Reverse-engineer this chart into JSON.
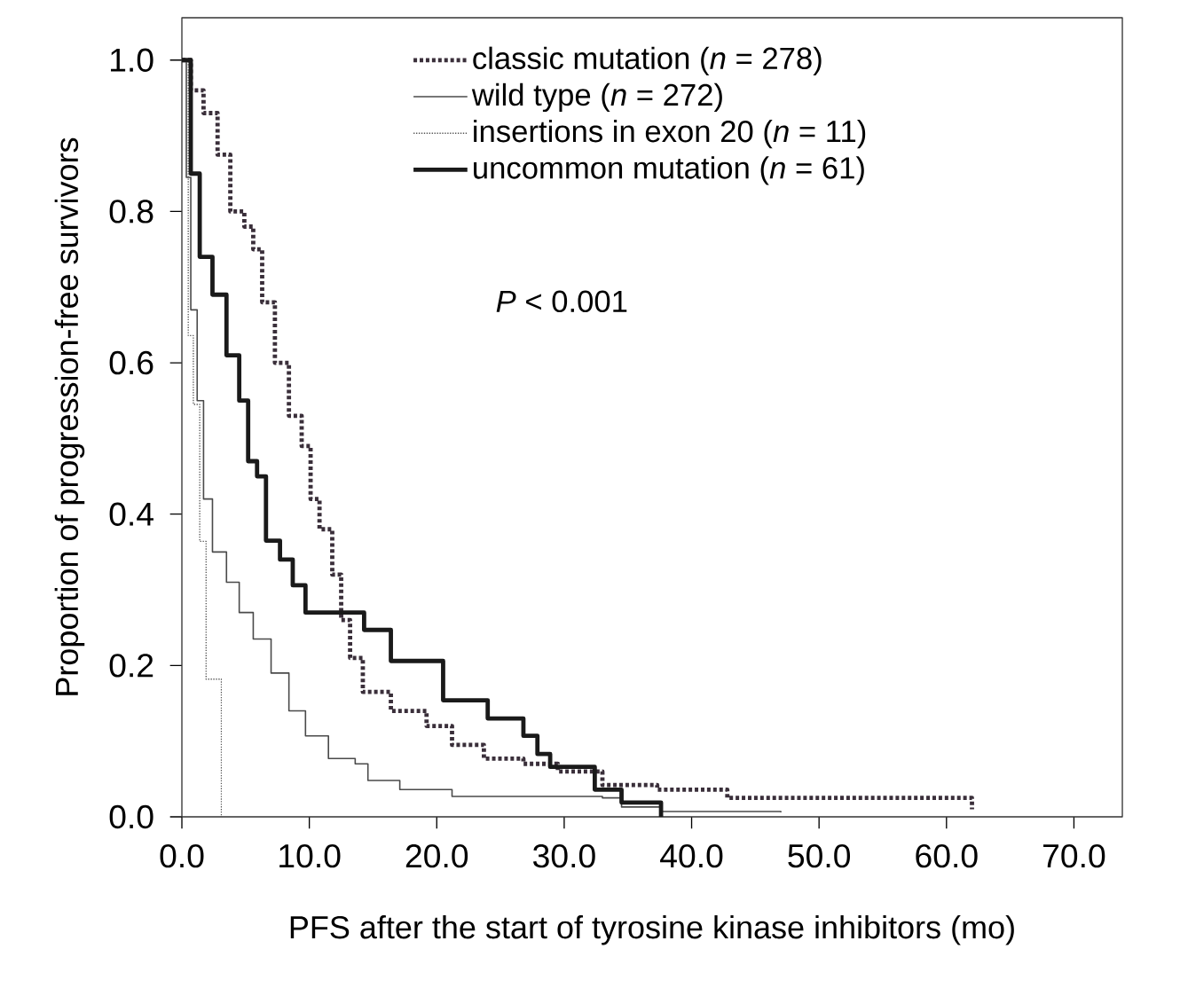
{
  "chart_data": {
    "type": "step",
    "xlabel": "PFS after the start of tyrosine kinase inhibitors (mo)",
    "ylabel": "Proportion of progression-free survivors",
    "xlim": [
      0,
      73.8
    ],
    "ylim": [
      0,
      1.056
    ],
    "xticks": [
      {
        "value": 0,
        "label": "0.0"
      },
      {
        "value": 10,
        "label": "10.0"
      },
      {
        "value": 20,
        "label": "20.0"
      },
      {
        "value": 30,
        "label": "30.0"
      },
      {
        "value": 40,
        "label": "40.0"
      },
      {
        "value": 50,
        "label": "50.0"
      },
      {
        "value": 60,
        "label": "60.0"
      },
      {
        "value": 70,
        "label": "70.0"
      }
    ],
    "yticks": [
      {
        "value": 0,
        "label": "0.0"
      },
      {
        "value": 0.2,
        "label": "0.2"
      },
      {
        "value": 0.4,
        "label": "0.4"
      },
      {
        "value": 0.6,
        "label": "0.6"
      },
      {
        "value": 0.8,
        "label": "0.8"
      },
      {
        "value": 1.0,
        "label": "1.0"
      }
    ],
    "legend": "top right",
    "grid": false,
    "annotations": [
      "*P* < 0.001"
    ],
    "series": [
      {
        "name": "classic mutation (*n* = 278)",
        "color": "#3a2f3a",
        "line_style": "dotted",
        "x": [
          0,
          0.7,
          1.7,
          2.8,
          3.8,
          4.9,
          5.6,
          6.3,
          7.3,
          8.4,
          9.4,
          10.1,
          10.8,
          11.8,
          12.5,
          13.2,
          14.2,
          16.4,
          19.2,
          21.2,
          23.7,
          26.8,
          29.5,
          33.0,
          37.3,
          42.8,
          62.0
        ],
        "values": [
          1.0,
          0.96,
          0.93,
          0.875,
          0.8,
          0.78,
          0.75,
          0.68,
          0.6,
          0.53,
          0.49,
          0.42,
          0.38,
          0.32,
          0.26,
          0.21,
          0.165,
          0.14,
          0.12,
          0.095,
          0.077,
          0.07,
          0.06,
          0.042,
          0.036,
          0.025,
          0.01
        ]
      },
      {
        "name": "wild type (*n* = 272)",
        "color": "#4a4a4a",
        "line_style": "solid",
        "x": [
          0,
          0.35,
          0.7,
          1.2,
          1.7,
          2.4,
          3.5,
          4.5,
          5.6,
          7.0,
          8.4,
          9.7,
          11.5,
          13.6,
          14.6,
          17.1,
          21.2,
          33.0,
          34.5,
          37.6,
          47.0
        ],
        "values": [
          1.0,
          0.845,
          0.67,
          0.55,
          0.42,
          0.35,
          0.31,
          0.27,
          0.235,
          0.19,
          0.14,
          0.107,
          0.077,
          0.07,
          0.048,
          0.036,
          0.027,
          0.025,
          0.013,
          0.007,
          0.006
        ]
      },
      {
        "name": "insertions in exon 20 (*n* = 11)",
        "color": "#555555",
        "line_style": "dotted",
        "x": [
          0,
          0.5,
          0.9,
          1.4,
          1.9,
          3.1
        ],
        "values": [
          1.0,
          0.636,
          0.545,
          0.364,
          0.182,
          0.0
        ]
      },
      {
        "name": "uncommon mutation (*n* = 61)",
        "color": "#1a1a1a",
        "line_style": "solid",
        "x": [
          0,
          0.7,
          1.4,
          2.4,
          3.5,
          4.5,
          5.2,
          5.9,
          6.6,
          7.7,
          8.7,
          9.7,
          14.3,
          16.4,
          20.5,
          24.0,
          26.8,
          27.9,
          28.9,
          32.4,
          34.5,
          37.6
        ],
        "values": [
          1.0,
          0.85,
          0.74,
          0.69,
          0.61,
          0.55,
          0.47,
          0.45,
          0.365,
          0.34,
          0.306,
          0.27,
          0.247,
          0.206,
          0.154,
          0.13,
          0.107,
          0.083,
          0.066,
          0.036,
          0.019,
          0.0
        ]
      }
    ]
  }
}
